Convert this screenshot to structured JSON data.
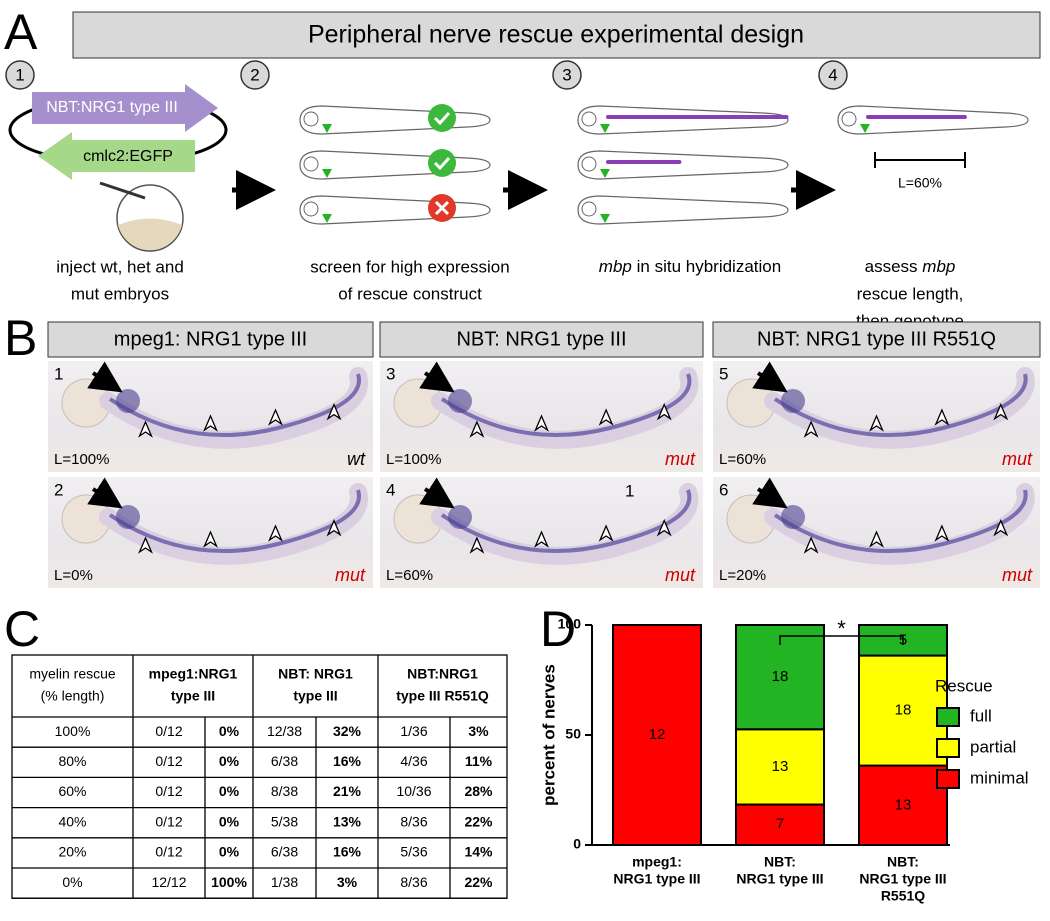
{
  "panel_a": {
    "letter": "A",
    "title": "Peripheral nerve rescue experimental design",
    "steps": [
      {
        "number": "1",
        "caption": [
          "inject wt, het and",
          "mut embryos"
        ]
      },
      {
        "number": "2",
        "caption": [
          "screen for high expression",
          "of rescue construct"
        ]
      },
      {
        "number": "3",
        "caption": [
          "mbp in situ hybridization"
        ]
      },
      {
        "number": "4",
        "caption": [
          "assess mbp",
          "rescue length,",
          "then genotype"
        ]
      }
    ],
    "plasmid": [
      "NBT:NRG1 type III",
      "cmlc2:EGFP"
    ],
    "scale_label": "L=60%"
  },
  "panel_b": {
    "letter": "B",
    "headers": [
      "mpeg1: NRG1 type III",
      "NBT: NRG1 type III",
      "NBT: NRG1 type III R551Q"
    ],
    "images": [
      {
        "number": "1",
        "length": "L=100%",
        "genotype": "wt"
      },
      {
        "number": "2",
        "length": "L=0%",
        "genotype": "mut"
      },
      {
        "number": "3",
        "length": "L=100%",
        "genotype": "mut"
      },
      {
        "number": "4",
        "length": "L=60%",
        "genotype": "mut",
        "marker": "1"
      },
      {
        "number": "5",
        "length": "L=60%",
        "genotype": "mut"
      },
      {
        "number": "6",
        "length": "L=20%",
        "genotype": "mut"
      }
    ]
  },
  "table": {
    "letter": "C",
    "header": [
      [
        "myelin rescue",
        "(% length)"
      ],
      [
        "mpeg1:NRG1",
        "type III"
      ],
      [
        "NBT: NRG1",
        "type III"
      ],
      [
        "NBT:NRG1",
        "type III R551Q"
      ]
    ],
    "rows": [
      [
        "100%",
        "0/12",
        "0%",
        "12/38",
        "32%",
        "1/36",
        "3%"
      ],
      [
        "80%",
        "0/12",
        "0%",
        "6/38",
        "16%",
        "4/36",
        "11%"
      ],
      [
        "60%",
        "0/12",
        "0%",
        "8/38",
        "21%",
        "10/36",
        "28%"
      ],
      [
        "40%",
        "0/12",
        "0%",
        "5/38",
        "13%",
        "8/36",
        "22%"
      ],
      [
        "20%",
        "0/12",
        "0%",
        "6/38",
        "16%",
        "5/36",
        "14%"
      ],
      [
        "0%",
        "12/12",
        "100%",
        "1/38",
        "3%",
        "8/36",
        "22%"
      ]
    ]
  },
  "chart_data": {
    "type": "bar",
    "stacked": true,
    "letter": "D",
    "ylabel": "percent of nerves",
    "legend_title": "Rescue",
    "annotation": "*",
    "categories": [
      [
        "mpeg1:",
        "NRG1 type III"
      ],
      [
        "NBT:",
        "NRG1 type III"
      ],
      [
        "NBT:",
        "NRG1 type III",
        "R551Q"
      ]
    ],
    "series": [
      {
        "name": "full",
        "color": "#22b422",
        "values": [
          0,
          47.4,
          13.9
        ],
        "counts": [
          null,
          18,
          5
        ]
      },
      {
        "name": "partial",
        "color": "#ffff00",
        "values": [
          0,
          34.2,
          50
        ],
        "counts": [
          null,
          13,
          18
        ]
      },
      {
        "name": "minimal",
        "color": "#ff0000",
        "values": [
          100,
          18.4,
          36.1
        ],
        "counts": [
          12,
          7,
          13
        ]
      }
    ],
    "ylim": [
      0,
      100
    ],
    "yticks": [
      0,
      50,
      100
    ]
  }
}
